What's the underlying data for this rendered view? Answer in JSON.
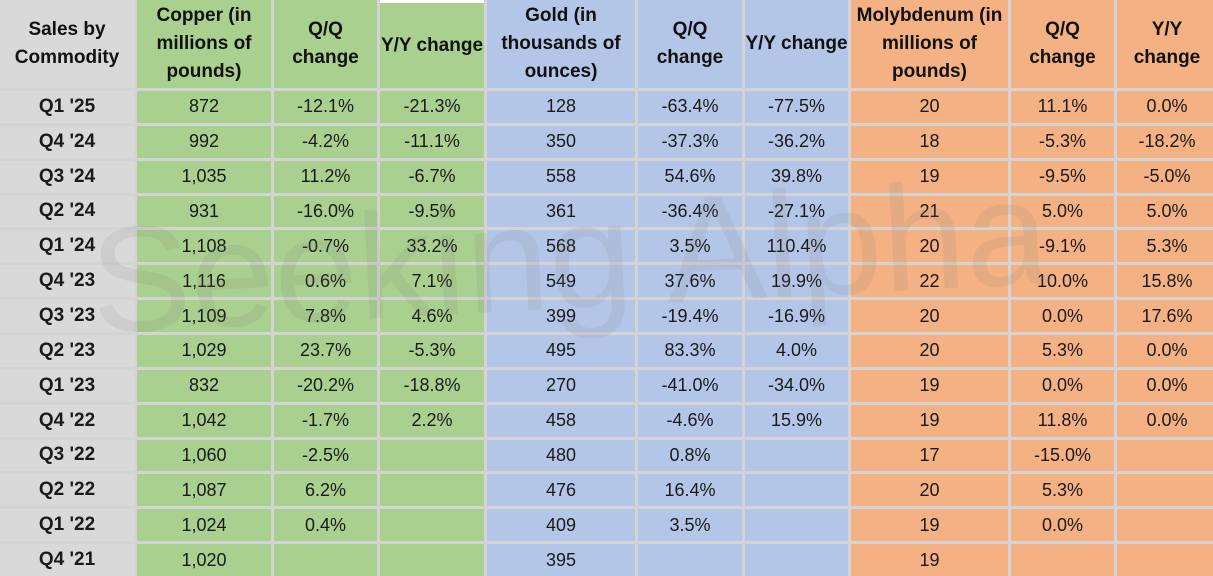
{
  "watermark": "Seeking Alpha",
  "colors": {
    "label": "#d9d9d9",
    "copper": "#a9d08e",
    "gold": "#b4c6e7",
    "molybdenum": "#f4b183",
    "grid": "#d4d4d4"
  },
  "chart_data": {
    "type": "table",
    "columns": [
      "Sales by Commodity",
      "Copper (in millions of pounds)",
      "Q/Q change",
      "Y/Y change",
      "Gold (in thousands of ounces)",
      "Q/Q change",
      "Y/Y change",
      "Molybdenum (in millions of pounds)",
      "Q/Q change",
      "Y/Y change"
    ],
    "rows": [
      [
        "Q1 '25",
        "872",
        "-12.1%",
        "-21.3%",
        "128",
        "-63.4%",
        "-77.5%",
        "20",
        "11.1%",
        "0.0%"
      ],
      [
        "Q4 '24",
        "992",
        "-4.2%",
        "-11.1%",
        "350",
        "-37.3%",
        "-36.2%",
        "18",
        "-5.3%",
        "-18.2%"
      ],
      [
        "Q3 '24",
        "1,035",
        "11.2%",
        "-6.7%",
        "558",
        "54.6%",
        "39.8%",
        "19",
        "-9.5%",
        "-5.0%"
      ],
      [
        "Q2 '24",
        "931",
        "-16.0%",
        "-9.5%",
        "361",
        "-36.4%",
        "-27.1%",
        "21",
        "5.0%",
        "5.0%"
      ],
      [
        "Q1 '24",
        "1,108",
        "-0.7%",
        "33.2%",
        "568",
        "3.5%",
        "110.4%",
        "20",
        "-9.1%",
        "5.3%"
      ],
      [
        "Q4 '23",
        "1,116",
        "0.6%",
        "7.1%",
        "549",
        "37.6%",
        "19.9%",
        "22",
        "10.0%",
        "15.8%"
      ],
      [
        "Q3 '23",
        "1,109",
        "7.8%",
        "4.6%",
        "399",
        "-19.4%",
        "-16.9%",
        "20",
        "0.0%",
        "17.6%"
      ],
      [
        "Q2 '23",
        "1,029",
        "23.7%",
        "-5.3%",
        "495",
        "83.3%",
        "4.0%",
        "20",
        "5.3%",
        "0.0%"
      ],
      [
        "Q1 '23",
        "832",
        "-20.2%",
        "-18.8%",
        "270",
        "-41.0%",
        "-34.0%",
        "19",
        "0.0%",
        "0.0%"
      ],
      [
        "Q4 '22",
        "1,042",
        "-1.7%",
        "2.2%",
        "458",
        "-4.6%",
        "15.9%",
        "19",
        "11.8%",
        "0.0%"
      ],
      [
        "Q3 '22",
        "1,060",
        "-2.5%",
        "",
        "480",
        "0.8%",
        "",
        "17",
        "-15.0%",
        ""
      ],
      [
        "Q2 '22",
        "1,087",
        "6.2%",
        "",
        "476",
        "16.4%",
        "",
        "20",
        "5.3%",
        ""
      ],
      [
        "Q1 '22",
        "1,024",
        "0.4%",
        "",
        "409",
        "3.5%",
        "",
        "19",
        "0.0%",
        ""
      ],
      [
        "Q4 '21",
        "1,020",
        "",
        "",
        "395",
        "",
        "",
        "19",
        "",
        ""
      ]
    ]
  }
}
